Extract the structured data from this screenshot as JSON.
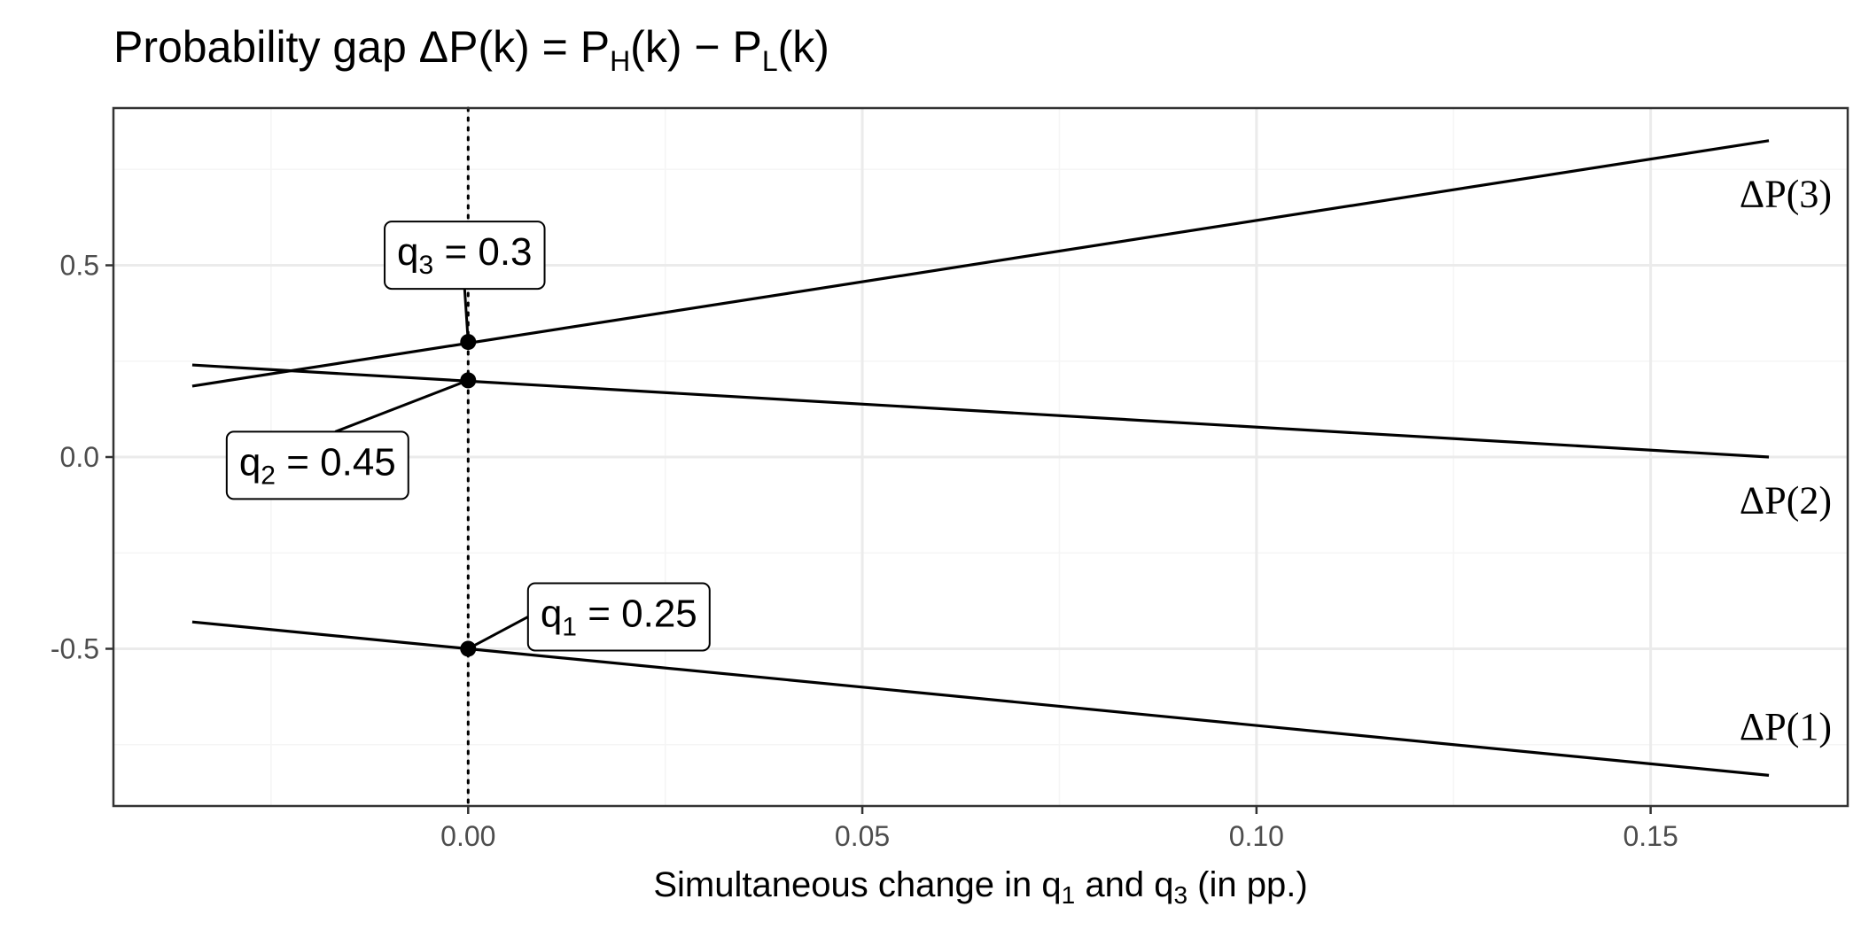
{
  "chart_data": {
    "type": "line",
    "title": {
      "prefix": "Probability gap ",
      "delta": "Δ",
      "lhs": "P(k)",
      "eq": " = ",
      "p": "P",
      "sub_h": "H",
      "mid": "(k) − ",
      "sub_l": "L",
      "end": "(k)"
    },
    "xlabel": {
      "text1": "Simultaneous change in  q",
      "sub1": "1",
      "text2": " and q",
      "sub2": "3",
      "text3": "  (in pp.)"
    },
    "ylabel": "",
    "xlim": [
      -0.045,
      0.175
    ],
    "ylim": [
      -0.91,
      0.91
    ],
    "x_ticks": [
      {
        "value": 0.0,
        "label": "0.00"
      },
      {
        "value": 0.05,
        "label": "0.05"
      },
      {
        "value": 0.1,
        "label": "0.10"
      },
      {
        "value": 0.15,
        "label": "0.15"
      }
    ],
    "y_ticks": [
      {
        "value": 0.5,
        "label": "0.5"
      },
      {
        "value": 0.0,
        "label": "0.0"
      },
      {
        "value": -0.5,
        "label": "-0.5"
      }
    ],
    "x_minor": [
      -0.025,
      0.025,
      0.075,
      0.125
    ],
    "y_minor": [
      0.75,
      0.25,
      -0.25,
      -0.75
    ],
    "grid": true,
    "reference_line": {
      "x": 0.0,
      "style": "dotted"
    },
    "series": [
      {
        "name": "ΔP(1)",
        "x": [
          -0.035,
          0.165
        ],
        "y": [
          -0.43,
          -0.83
        ]
      },
      {
        "name": "ΔP(2)",
        "x": [
          -0.035,
          0.165
        ],
        "y": [
          0.24,
          0.0
        ]
      },
      {
        "name": "ΔP(3)",
        "x": [
          -0.035,
          0.165
        ],
        "y": [
          0.185,
          0.825
        ]
      }
    ],
    "series_labels": [
      {
        "delta": "Δ",
        "text": "P(3)",
        "y": 0.69
      },
      {
        "delta": "Δ",
        "text": "P(2)",
        "y": -0.11
      },
      {
        "delta": "Δ",
        "text": "P(1)",
        "y": -0.7
      }
    ],
    "points": [
      {
        "x": 0.0,
        "y": 0.3,
        "label_var": "q",
        "label_sub": "3",
        "label_rest": " = 0.3"
      },
      {
        "x": 0.0,
        "y": 0.2,
        "label_var": "q",
        "label_sub": "2",
        "label_rest": " = 0.45"
      },
      {
        "x": 0.0,
        "y": -0.5,
        "label_var": "q",
        "label_sub": "1",
        "label_rest": " = 0.25"
      }
    ],
    "colors": {
      "line": "#000000",
      "grid_major": "#ebebeb",
      "grid_minor": "#f5f5f5",
      "panel_border": "#333333"
    }
  }
}
